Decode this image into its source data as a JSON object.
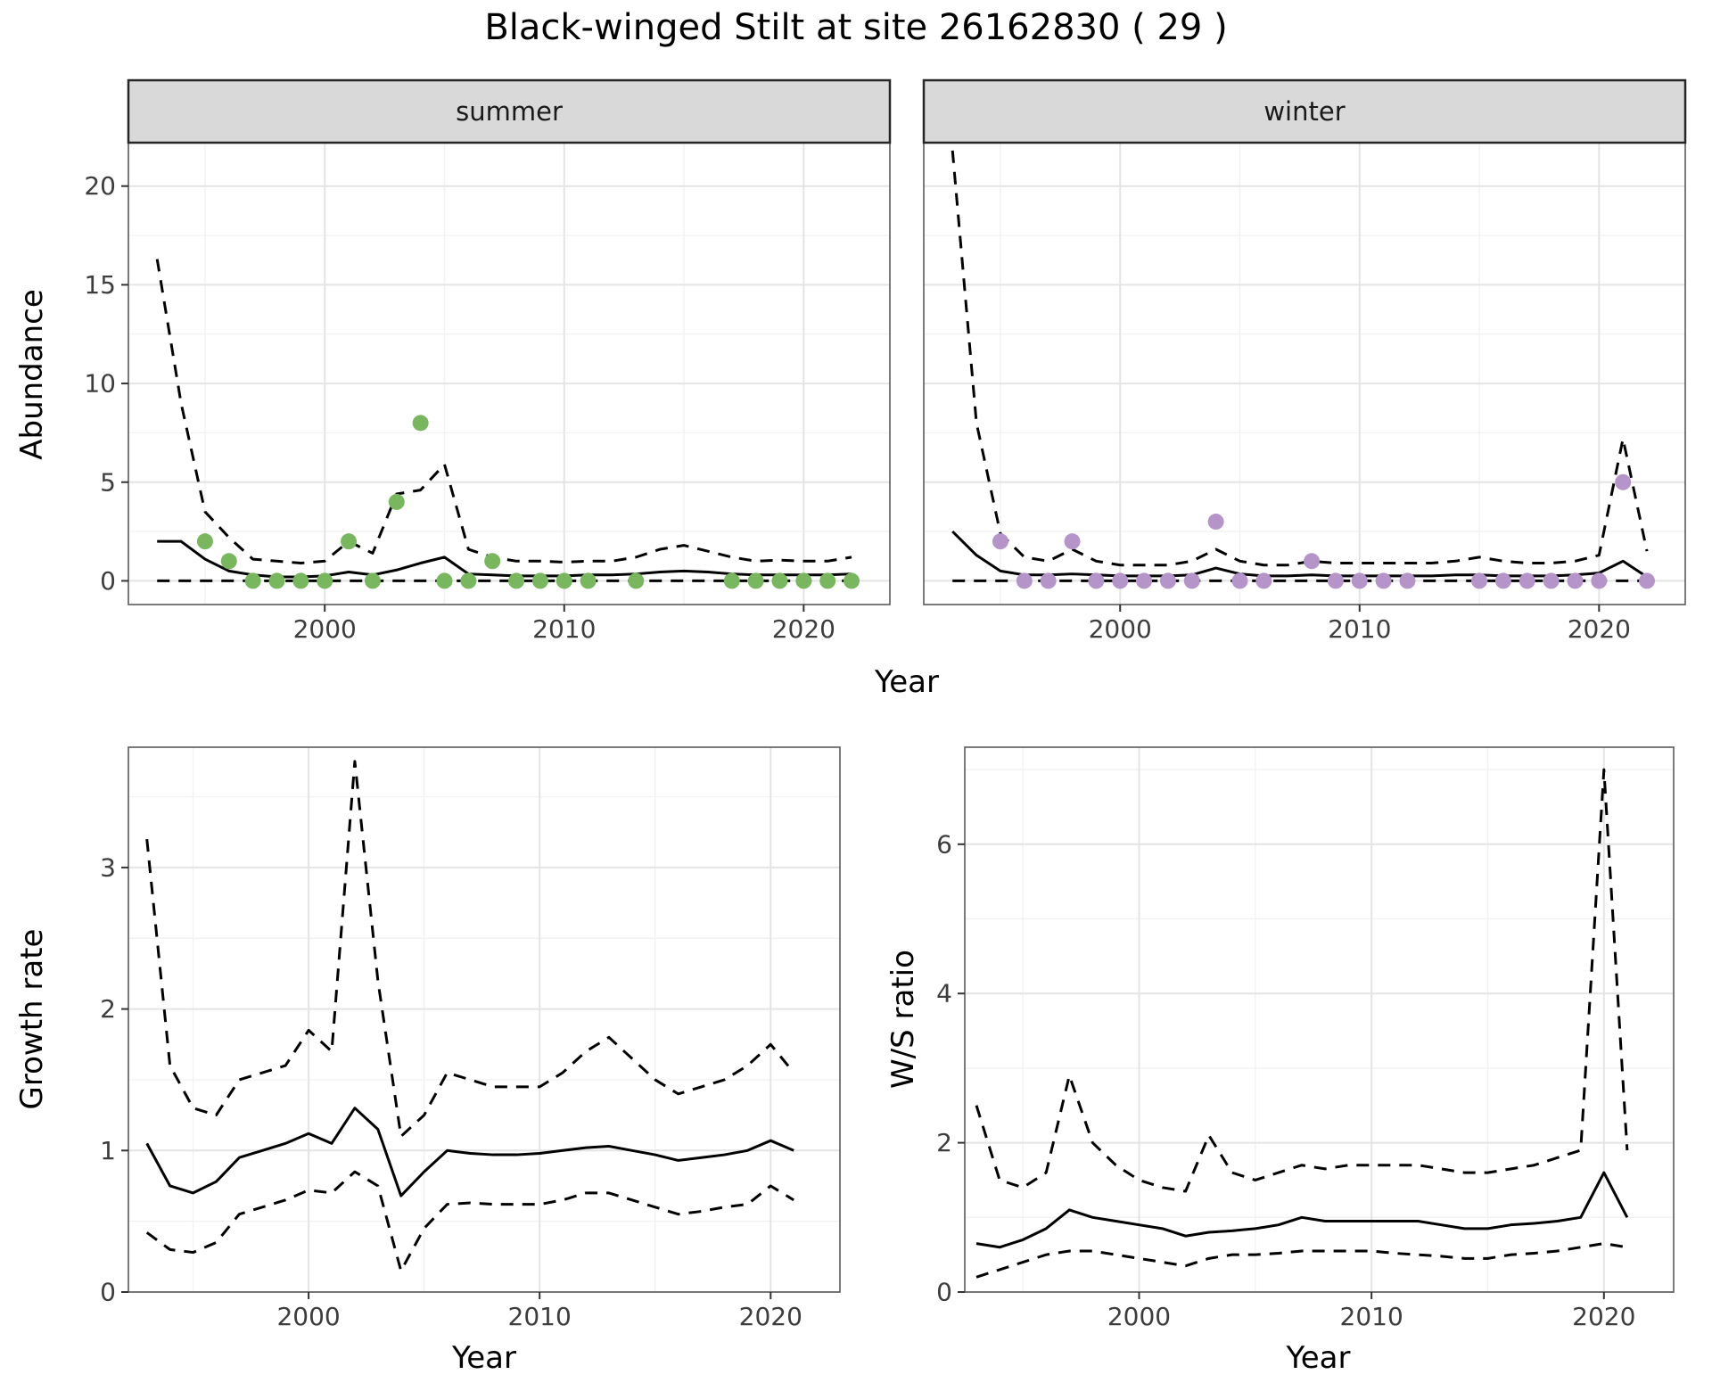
{
  "title": "Black-winged Stilt at site 26162830 ( 29 )",
  "title_parts": {
    "species": "Black-winged Stilt",
    "site_id": "26162830",
    "n": "29"
  },
  "labels": {
    "abundance": "Abundance",
    "year": "Year",
    "growth_rate": "Growth rate",
    "ws_ratio": "W/S ratio"
  },
  "colors": {
    "summer_points": "#78b75e",
    "winter_points": "#b594c9",
    "line": "#000000",
    "grid_major": "#e4e4e4",
    "grid_minor": "#f2f2f2",
    "panel_border": "#5a5a5a",
    "strip_bg": "#d9d9d9",
    "strip_border": "#262626",
    "tick": "#333333",
    "axis_text": "#3d3d3d"
  },
  "chart_data": [
    {
      "id": "abundance-summer",
      "type": "line",
      "facet_label": "summer",
      "ylabel": "Abundance",
      "xlabel": "Year",
      "xlim": [
        1991.8,
        2023.6
      ],
      "ylim": [
        -1.2,
        22.2
      ],
      "xticks": [
        2000,
        2010,
        2020
      ],
      "xminor": [
        1995,
        2005,
        2015
      ],
      "yticks": [
        0,
        5,
        10,
        15,
        20
      ],
      "yminor": [
        2.5,
        7.5,
        12.5,
        17.5
      ],
      "show_y_labels": true,
      "x": [
        1993,
        1994,
        1995,
        1996,
        1997,
        1998,
        1999,
        2000,
        2001,
        2002,
        2003,
        2004,
        2005,
        2006,
        2007,
        2008,
        2009,
        2010,
        2011,
        2012,
        2013,
        2014,
        2015,
        2016,
        2017,
        2018,
        2019,
        2020,
        2021,
        2022
      ],
      "series": [
        {
          "name": "upper_ci",
          "style": "dashed",
          "values": [
            16.3,
            9.0,
            3.5,
            2.2,
            1.1,
            1.0,
            0.9,
            1.0,
            2.0,
            1.4,
            4.4,
            4.6,
            5.9,
            1.6,
            1.2,
            1.0,
            1.0,
            0.95,
            1.0,
            1.0,
            1.2,
            1.6,
            1.8,
            1.5,
            1.2,
            1.0,
            1.05,
            1.0,
            1.0,
            1.2
          ]
        },
        {
          "name": "fit",
          "style": "solid",
          "values": [
            2.0,
            2.0,
            1.1,
            0.5,
            0.3,
            0.2,
            0.2,
            0.25,
            0.45,
            0.3,
            0.55,
            0.9,
            1.2,
            0.35,
            0.3,
            0.25,
            0.25,
            0.25,
            0.3,
            0.3,
            0.35,
            0.45,
            0.5,
            0.45,
            0.35,
            0.3,
            0.3,
            0.3,
            0.3,
            0.35
          ]
        },
        {
          "name": "lower_ci",
          "style": "dashed",
          "values": [
            0,
            0,
            0,
            0,
            0,
            0,
            0,
            0,
            0,
            0,
            0,
            0,
            0,
            0,
            0,
            0,
            0,
            0,
            0,
            0,
            0,
            0,
            0,
            0,
            0,
            0,
            0,
            0,
            0,
            0
          ]
        }
      ],
      "points": {
        "name": "observed_counts",
        "color": "#78b75e",
        "x": [
          1995,
          1996,
          1997,
          1998,
          1999,
          2000,
          2001,
          2002,
          2003,
          2004,
          2005,
          2006,
          2007,
          2008,
          2009,
          2010,
          2011,
          2013,
          2017,
          2018,
          2019,
          2020,
          2021,
          2022
        ],
        "y": [
          2,
          1,
          0,
          0,
          0,
          0,
          2,
          0,
          4,
          8,
          0,
          0,
          1,
          0,
          0,
          0,
          0,
          0,
          0,
          0,
          0,
          0,
          0,
          0
        ]
      }
    },
    {
      "id": "abundance-winter",
      "type": "line",
      "facet_label": "winter",
      "ylabel": "Abundance",
      "xlabel": "Year",
      "xlim": [
        1991.8,
        2023.6
      ],
      "ylim": [
        -1.2,
        22.2
      ],
      "xticks": [
        2000,
        2010,
        2020
      ],
      "xminor": [
        1995,
        2005,
        2015
      ],
      "yticks": [
        0,
        5,
        10,
        15,
        20
      ],
      "yminor": [
        2.5,
        7.5,
        12.5,
        17.5
      ],
      "show_y_labels": false,
      "x": [
        1993,
        1994,
        1995,
        1996,
        1997,
        1998,
        1999,
        2000,
        2001,
        2002,
        2003,
        2004,
        2005,
        2006,
        2007,
        2008,
        2009,
        2010,
        2011,
        2012,
        2013,
        2014,
        2015,
        2016,
        2017,
        2018,
        2019,
        2020,
        2021,
        2022
      ],
      "series": [
        {
          "name": "upper_ci",
          "style": "dashed",
          "values": [
            21.8,
            8.0,
            2.4,
            1.2,
            1.0,
            1.6,
            1.0,
            0.8,
            0.8,
            0.8,
            1.0,
            1.6,
            1.0,
            0.8,
            0.8,
            1.0,
            0.9,
            0.9,
            0.9,
            0.9,
            0.9,
            1.0,
            1.2,
            1.0,
            0.9,
            0.9,
            1.0,
            1.3,
            7.2,
            1.5
          ]
        },
        {
          "name": "fit",
          "style": "solid",
          "values": [
            2.5,
            1.3,
            0.5,
            0.3,
            0.3,
            0.35,
            0.3,
            0.25,
            0.25,
            0.25,
            0.3,
            0.65,
            0.35,
            0.25,
            0.25,
            0.3,
            0.25,
            0.25,
            0.25,
            0.25,
            0.25,
            0.3,
            0.3,
            0.25,
            0.25,
            0.25,
            0.3,
            0.4,
            1.0,
            0.2
          ]
        },
        {
          "name": "lower_ci",
          "style": "dashed",
          "values": [
            0,
            0,
            0,
            0,
            0,
            0,
            0,
            0,
            0,
            0,
            0,
            0,
            0,
            0,
            0,
            0,
            0,
            0,
            0,
            0,
            0,
            0,
            0,
            0,
            0,
            0,
            0,
            0,
            0,
            0
          ]
        }
      ],
      "points": {
        "name": "observed_counts",
        "color": "#b594c9",
        "x": [
          1995,
          1996,
          1997,
          1998,
          1999,
          2000,
          2001,
          2002,
          2003,
          2004,
          2005,
          2006,
          2008,
          2009,
          2010,
          2011,
          2012,
          2015,
          2016,
          2017,
          2018,
          2019,
          2020,
          2021,
          2022
        ],
        "y": [
          2,
          0,
          0,
          2,
          0,
          0,
          0,
          0,
          0,
          3,
          0,
          0,
          1,
          0,
          0,
          0,
          0,
          0,
          0,
          0,
          0,
          0,
          0,
          5,
          0
        ]
      }
    },
    {
      "id": "growth-rate",
      "type": "line",
      "facet_label": null,
      "ylabel": "Growth rate",
      "xlabel": "Year",
      "xlim": [
        1992.2,
        2023.0
      ],
      "ylim": [
        0,
        3.85
      ],
      "xticks": [
        2000,
        2010,
        2020
      ],
      "xminor": [
        1995,
        2005,
        2015
      ],
      "yticks": [
        0,
        1,
        2,
        3
      ],
      "yminor": [
        0.5,
        1.5,
        2.5,
        3.5
      ],
      "show_y_labels": true,
      "x": [
        1993,
        1994,
        1995,
        1996,
        1997,
        1998,
        1999,
        2000,
        2001,
        2002,
        2003,
        2004,
        2005,
        2006,
        2007,
        2008,
        2009,
        2010,
        2011,
        2012,
        2013,
        2014,
        2015,
        2016,
        2017,
        2018,
        2019,
        2020,
        2021
      ],
      "series": [
        {
          "name": "upper_ci",
          "style": "dashed",
          "values": [
            3.2,
            1.6,
            1.3,
            1.25,
            1.5,
            1.55,
            1.6,
            1.85,
            1.7,
            3.75,
            2.2,
            1.1,
            1.25,
            1.55,
            1.5,
            1.45,
            1.45,
            1.45,
            1.55,
            1.7,
            1.8,
            1.65,
            1.5,
            1.4,
            1.45,
            1.5,
            1.6,
            1.75,
            1.55
          ]
        },
        {
          "name": "fit",
          "style": "solid",
          "values": [
            1.05,
            0.75,
            0.7,
            0.78,
            0.95,
            1.0,
            1.05,
            1.12,
            1.05,
            1.3,
            1.15,
            0.68,
            0.85,
            1.0,
            0.98,
            0.97,
            0.97,
            0.98,
            1.0,
            1.02,
            1.03,
            1.0,
            0.97,
            0.93,
            0.95,
            0.97,
            1.0,
            1.07,
            1.0
          ]
        },
        {
          "name": "lower_ci",
          "style": "dashed",
          "values": [
            0.42,
            0.3,
            0.28,
            0.35,
            0.55,
            0.6,
            0.65,
            0.72,
            0.7,
            0.85,
            0.75,
            0.15,
            0.45,
            0.62,
            0.63,
            0.62,
            0.62,
            0.62,
            0.65,
            0.7,
            0.7,
            0.65,
            0.6,
            0.55,
            0.57,
            0.6,
            0.62,
            0.75,
            0.65
          ]
        }
      ],
      "points": null
    },
    {
      "id": "ws-ratio",
      "type": "line",
      "facet_label": null,
      "ylabel": "W/S ratio",
      "xlabel": "Year",
      "xlim": [
        1992.5,
        2023.0
      ],
      "ylim": [
        0,
        7.3
      ],
      "xticks": [
        2000,
        2010,
        2020
      ],
      "xminor": [
        1995,
        2005,
        2015
      ],
      "yticks": [
        0,
        2,
        4,
        6
      ],
      "yminor": [
        1,
        3,
        5,
        7
      ],
      "show_y_labels": true,
      "x": [
        1993,
        1994,
        1995,
        1996,
        1997,
        1998,
        1999,
        2000,
        2001,
        2002,
        2003,
        2004,
        2005,
        2006,
        2007,
        2008,
        2009,
        2010,
        2011,
        2012,
        2013,
        2014,
        2015,
        2016,
        2017,
        2018,
        2019,
        2020,
        2021
      ],
      "series": [
        {
          "name": "upper_ci",
          "style": "dashed",
          "values": [
            2.5,
            1.5,
            1.4,
            1.6,
            2.9,
            2.0,
            1.7,
            1.5,
            1.4,
            1.35,
            2.1,
            1.6,
            1.5,
            1.6,
            1.7,
            1.65,
            1.7,
            1.7,
            1.7,
            1.7,
            1.65,
            1.6,
            1.6,
            1.65,
            1.7,
            1.8,
            1.9,
            7.0,
            1.9
          ]
        },
        {
          "name": "fit",
          "style": "solid",
          "values": [
            0.65,
            0.6,
            0.7,
            0.85,
            1.1,
            1.0,
            0.95,
            0.9,
            0.85,
            0.75,
            0.8,
            0.82,
            0.85,
            0.9,
            1.0,
            0.95,
            0.95,
            0.95,
            0.95,
            0.95,
            0.9,
            0.85,
            0.85,
            0.9,
            0.92,
            0.95,
            1.0,
            1.6,
            1.0
          ]
        },
        {
          "name": "lower_ci",
          "style": "dashed",
          "values": [
            0.2,
            0.3,
            0.4,
            0.5,
            0.55,
            0.55,
            0.5,
            0.45,
            0.4,
            0.35,
            0.45,
            0.5,
            0.5,
            0.52,
            0.55,
            0.55,
            0.55,
            0.55,
            0.52,
            0.5,
            0.48,
            0.45,
            0.45,
            0.5,
            0.52,
            0.55,
            0.6,
            0.65,
            0.6
          ]
        }
      ],
      "points": null
    }
  ]
}
